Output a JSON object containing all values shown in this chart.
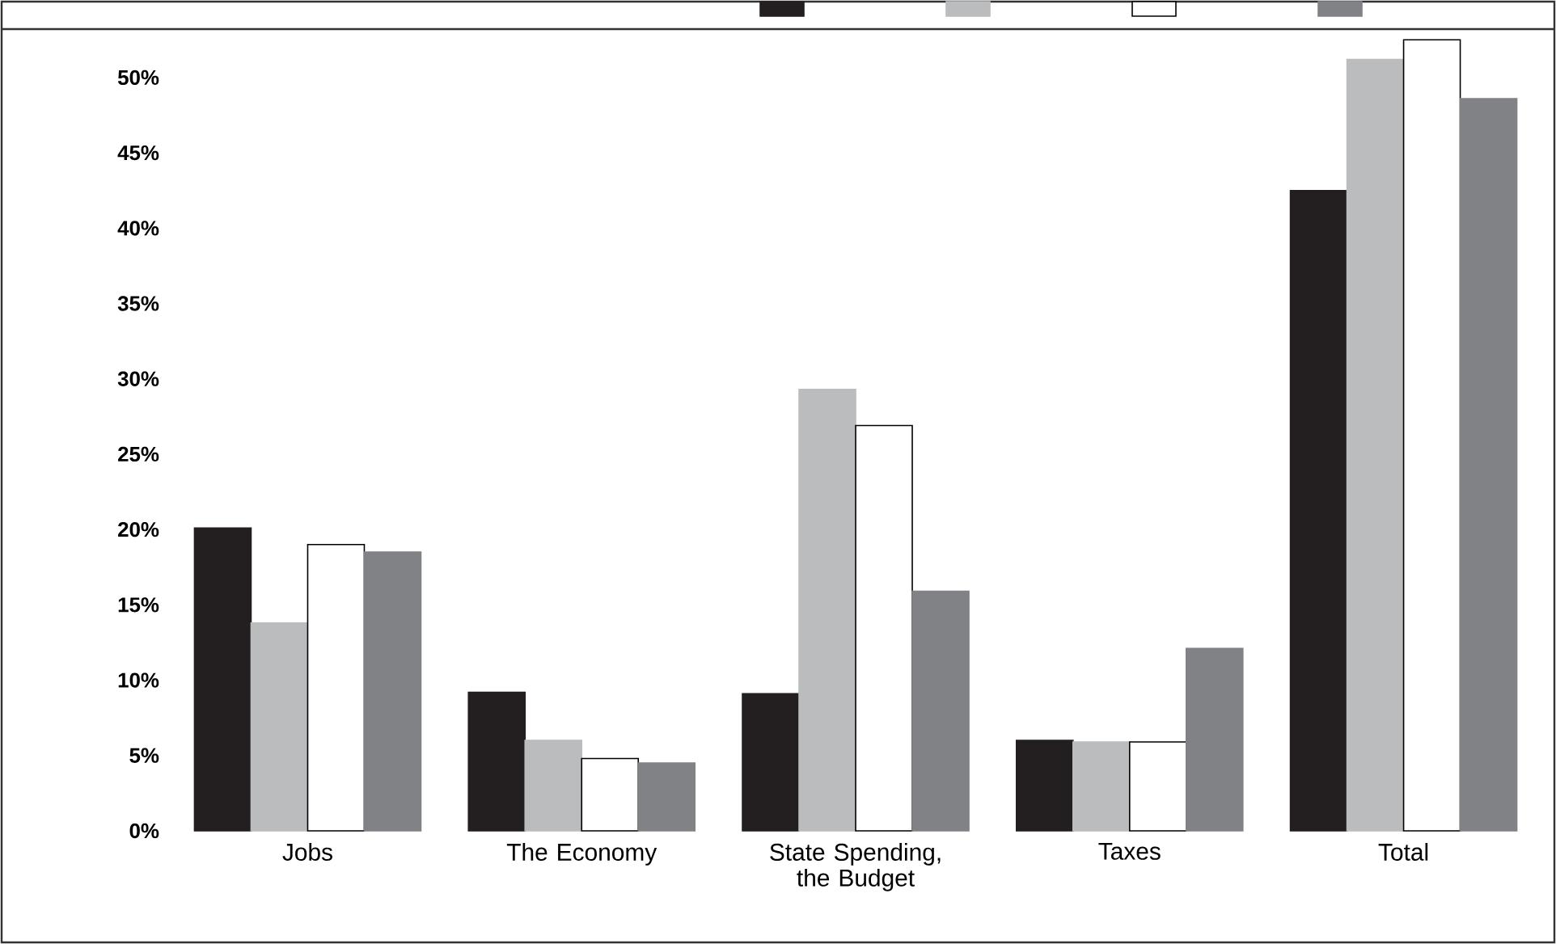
{
  "chart_data": {
    "type": "bar",
    "categories": [
      "Jobs",
      "The Economy",
      "State Spending, the Budget",
      "Taxes",
      "Total"
    ],
    "series": [
      {
        "color": "#231f20",
        "values": [
          20.1,
          9.2,
          9.1,
          6.0,
          42.5
        ]
      },
      {
        "color": "#bbbcbe",
        "values": [
          13.8,
          6.0,
          29.3,
          5.9,
          51.2
        ]
      },
      {
        "color": "#ffffff",
        "values": [
          19.0,
          4.8,
          26.9,
          5.9,
          52.5
        ]
      },
      {
        "color": "#808285",
        "values": [
          18.5,
          4.5,
          15.9,
          12.1,
          48.6
        ]
      }
    ],
    "ylim": [
      0,
      53
    ],
    "yticks": [
      {
        "value": 0,
        "label": "0%"
      },
      {
        "value": 5,
        "label": "5%"
      },
      {
        "value": 10,
        "label": "10%"
      },
      {
        "value": 15,
        "label": "15%"
      },
      {
        "value": 20,
        "label": "20%"
      },
      {
        "value": 25,
        "label": "25%"
      },
      {
        "value": 30,
        "label": "30%"
      },
      {
        "value": 35,
        "label": "35%"
      },
      {
        "value": 40,
        "label": "40%"
      },
      {
        "value": 45,
        "label": "45%"
      },
      {
        "value": 50,
        "label": "50%"
      }
    ],
    "grid": false
  }
}
